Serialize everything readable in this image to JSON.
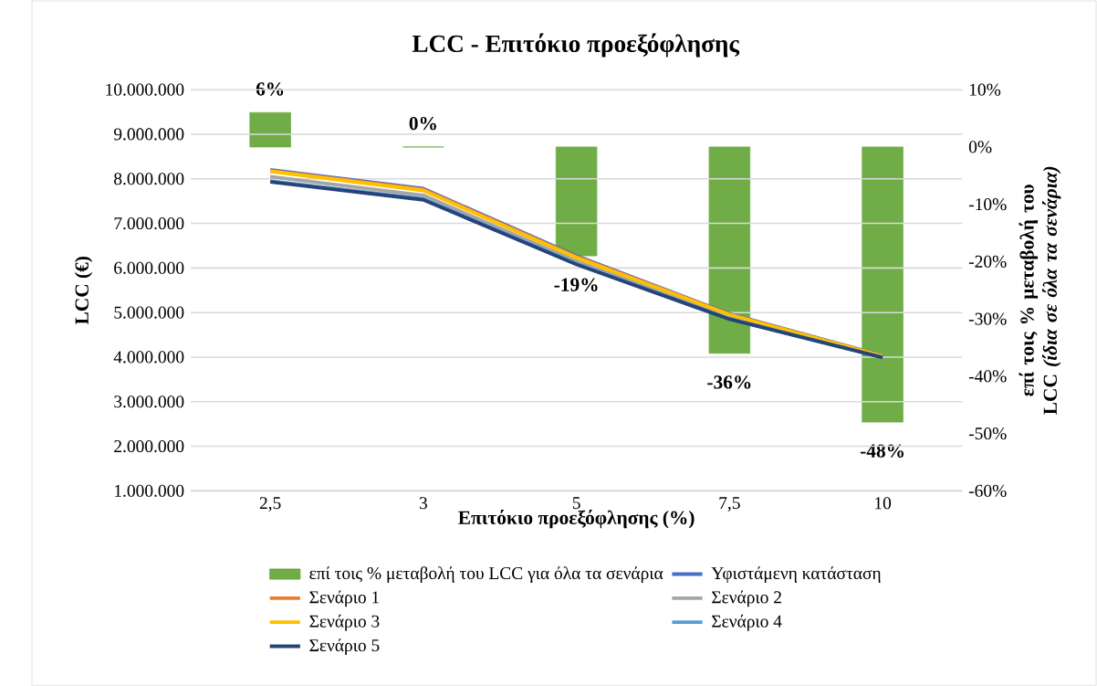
{
  "chart_data": {
    "type": "bar",
    "title": "LCC - Επιτόκιο προεξόφλησης",
    "xlabel": "Επιτόκιο προεξόφλησης (%)",
    "ylabel": "LCC (€)",
    "y2label": "επί τοις % μεταβολή του LCC *(ίδια σε όλα τα σενάρια)*",
    "categories": [
      "2,5",
      "3",
      "5",
      "7,5",
      "10"
    ],
    "series": [
      {
        "name": "επί τοις % μεταβολή του LCC για όλα τα σενάρια",
        "axis": "y2",
        "color": "#70ad47",
        "values": [
          6,
          0,
          -19,
          -36,
          -48
        ],
        "value_labels": [
          "6%",
          "0%",
          "-19%",
          "-36%",
          "-48%"
        ]
      },
      {
        "name": "Υφιστάμενη κατάσταση",
        "type": "line",
        "color": "#4472c4",
        "values": [
          8200000,
          7780000,
          6270000,
          4970000,
          4030000
        ]
      },
      {
        "name": "Σενάριο 1",
        "type": "line",
        "color": "#ed7d31",
        "values": [
          8180000,
          7760000,
          6250000,
          4960000,
          4020000
        ]
      },
      {
        "name": "Σενάριο 2",
        "type": "line",
        "color": "#a5a5a5",
        "values": [
          8050000,
          7630000,
          6150000,
          4900000,
          4010000
        ]
      },
      {
        "name": "Σενάριο 3",
        "type": "line",
        "color": "#ffc000",
        "values": [
          8170000,
          7740000,
          6230000,
          4950000,
          4020000
        ]
      },
      {
        "name": "Σενάριο 4",
        "type": "line",
        "color": "#5b9bd5",
        "values": [
          7950000,
          7550000,
          6100000,
          4860000,
          3990000
        ]
      },
      {
        "name": "Σενάριο 5",
        "type": "line",
        "color": "#264478",
        "values": [
          7930000,
          7530000,
          6080000,
          4850000,
          3990000
        ]
      }
    ],
    "ylim": [
      1000000,
      10000000
    ],
    "yticks": [
      {
        "value": 1000000,
        "label": "1.000.000"
      },
      {
        "value": 2000000,
        "label": "2.000.000"
      },
      {
        "value": 3000000,
        "label": "3.000.000"
      },
      {
        "value": 4000000,
        "label": "4.000.000"
      },
      {
        "value": 5000000,
        "label": "5.000.000"
      },
      {
        "value": 6000000,
        "label": "6.000.000"
      },
      {
        "value": 7000000,
        "label": "7.000.000"
      },
      {
        "value": 8000000,
        "label": "8.000.000"
      },
      {
        "value": 9000000,
        "label": "9.000.000"
      },
      {
        "value": 10000000,
        "label": "10.000.000"
      }
    ],
    "y2lim": [
      -60,
      10
    ],
    "y2ticks": [
      {
        "value": -60,
        "label": "-60%"
      },
      {
        "value": -50,
        "label": "-50%"
      },
      {
        "value": -40,
        "label": "-40%"
      },
      {
        "value": -30,
        "label": "-30%"
      },
      {
        "value": -20,
        "label": "-20%"
      },
      {
        "value": -10,
        "label": "-10%"
      },
      {
        "value": 0,
        "label": "0%"
      },
      {
        "value": 10,
        "label": "10%"
      }
    ],
    "grid": "y",
    "legend": "bottom",
    "marker": "none",
    "line_style": "solid"
  }
}
